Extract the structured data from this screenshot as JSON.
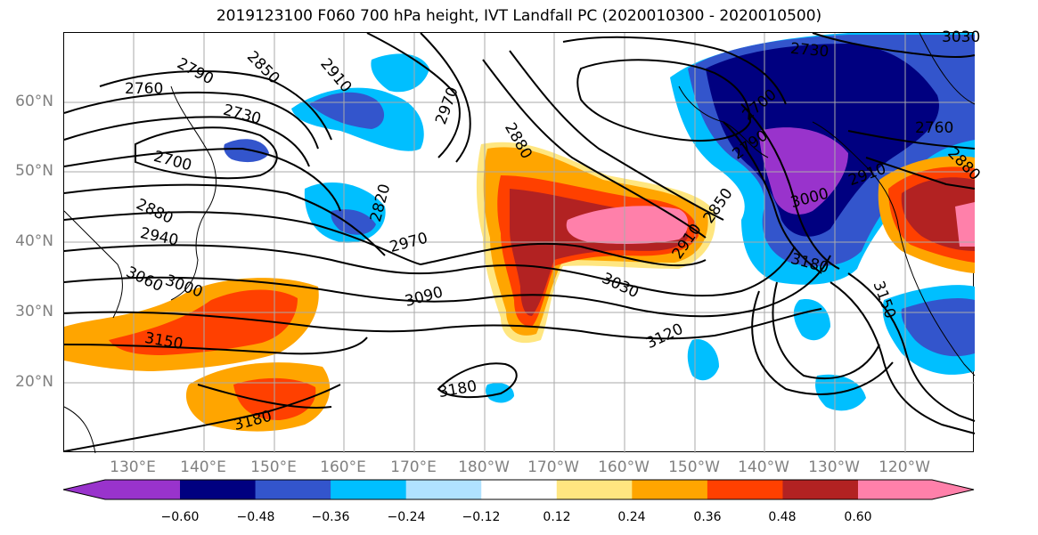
{
  "title": "2019123100 F060 700 hPa height, IVT Landfall PC (2020010300 - 2020010500)",
  "lat_labels": [
    "60°N",
    "50°N",
    "40°N",
    "30°N",
    "20°N"
  ],
  "lon_labels": [
    "130°E",
    "140°E",
    "150°E",
    "160°E",
    "170°E",
    "180°W",
    "170°W",
    "160°W",
    "150°W",
    "140°W",
    "130°W",
    "120°W"
  ],
  "colorbar": {
    "ticks": [
      "−0.60",
      "−0.48",
      "−0.36",
      "−0.24",
      "−0.12",
      "0.12",
      "0.24",
      "0.36",
      "0.48",
      "0.60"
    ],
    "colors": [
      "#9933cc",
      "#000080",
      "#3355cc",
      "#00bfff",
      "#b0e2ff",
      "#ffffff",
      "#ffe680",
      "#ffa500",
      "#ff4000",
      "#b22222",
      "#ff80aa"
    ]
  },
  "contour_labels": [
    "2790",
    "2850",
    "2910",
    "2970",
    "2760",
    "2730",
    "2700",
    "2880",
    "2940",
    "3000",
    "3060",
    "3150",
    "3180",
    "2820",
    "2970",
    "3090",
    "2880",
    "2910",
    "2850",
    "3030",
    "3120",
    "3180",
    "2730",
    "2700",
    "2790",
    "3000",
    "3180",
    "3150",
    "2760",
    "2910",
    "2880",
    "3030"
  ]
}
